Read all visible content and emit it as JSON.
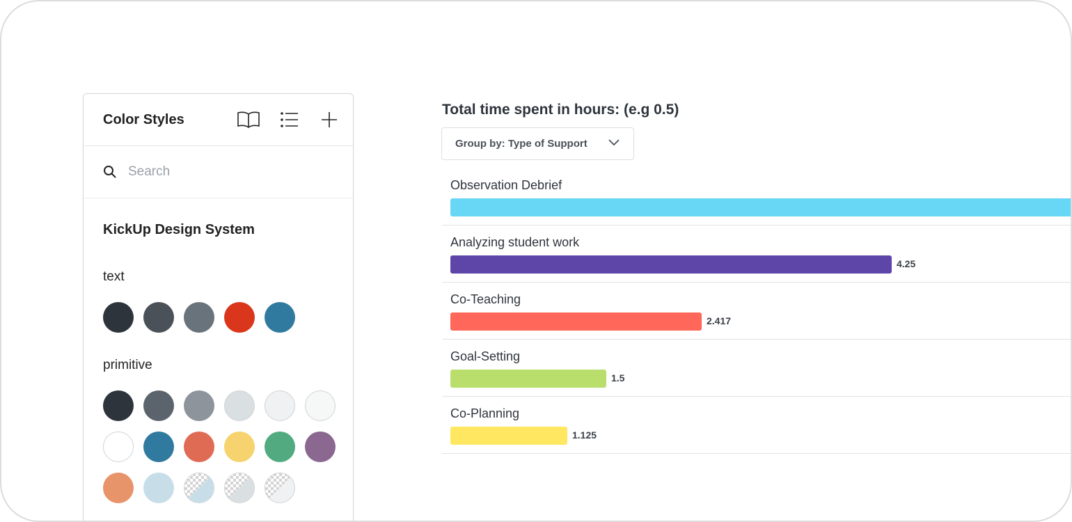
{
  "panel": {
    "title": "Color Styles",
    "icons": [
      "book-icon",
      "list-icon",
      "plus-icon"
    ],
    "search": {
      "placeholder": "Search",
      "value": ""
    },
    "library_title": "KickUp Design System",
    "groups": [
      {
        "label": "text",
        "swatches": [
          "#2e343c",
          "#4a5158",
          "#68737c",
          "#d9361b",
          "#317a9f"
        ]
      },
      {
        "label": "primitive",
        "swatches": [
          "#2e343c",
          "#5b646c",
          "#8d949b",
          "#dadfe2",
          "#eff1f2",
          "#f6f7f7",
          "#ffffff",
          "#317a9f",
          "#e06b55",
          "#f6d36e",
          "#52ab80",
          "#8a6890",
          "#e8946a",
          "#c7dee8",
          "checker:#c7dee8",
          "checker:#dadfe2",
          "checker:#eff1f2"
        ]
      }
    ]
  },
  "chart": {
    "title": "Total time spent in hours: (e.g 0.5)",
    "group_by_label": "Group by: Type of Support"
  },
  "chart_data": {
    "type": "bar",
    "orientation": "horizontal",
    "title": "Total time spent in hours: (e.g 0.5)",
    "categories": [
      "Observation Debrief",
      "Analyzing student work",
      "Co-Teaching",
      "Goal-Setting",
      "Co-Planning"
    ],
    "values": [
      6.0,
      4.25,
      2.417,
      1.5,
      1.125
    ],
    "value_labels": [
      "",
      "4.25",
      "2.417",
      "1.5",
      "1.125"
    ],
    "colors": [
      "#68d6f5",
      "#5e45a8",
      "#fe675a",
      "#bade6c",
      "#ffe762"
    ],
    "xlim": [
      0,
      6.0
    ]
  }
}
